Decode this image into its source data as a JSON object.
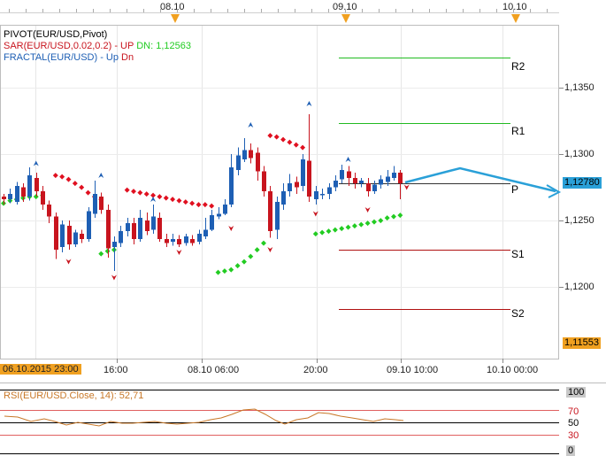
{
  "top_dates": [
    "08.10",
    "09.10",
    "10.10"
  ],
  "legend": {
    "pivot": "PIVOT(EUR/USD,Pivot)",
    "sar_name": "SAR(EUR/USD,0.02,0.2) -",
    "sar_up": "UP",
    "sar_dn": "DN: 1,12563",
    "fractal_name": "FRACTAL(EUR/USD) -",
    "fractal_up": "Up",
    "fractal_dn": "Dn"
  },
  "pivot_levels": {
    "r2": "R2",
    "r1": "R1",
    "p": "P",
    "s1": "S1",
    "s2": "S2"
  },
  "y_axis": {
    "ticks": [
      "1,1350",
      "1,1300",
      "1,1250",
      "1,1200"
    ],
    "current_price": "1,12780",
    "low_price": "1,11553"
  },
  "x_axis": {
    "start_label": "06.10.2015 23:00",
    "ticks": [
      "16:00",
      "08.10 06:00",
      "20:00",
      "09.10 10:00",
      "10.10 00:00"
    ]
  },
  "rsi": {
    "label": "RSI(EUR/USD.Close, 14): 52,71",
    "levels": [
      "100",
      "70",
      "50",
      "30",
      "0"
    ]
  },
  "colors": {
    "bull": "#1e5fb4",
    "bear": "#c8141e",
    "sar": "#e01020",
    "sar_up": "#22cc22",
    "pivot_resistance": "#22bb22",
    "pivot_support": "#b01010",
    "projection": "#2aa0d8",
    "current_box": "#2aa0d8",
    "low_box": "#f0a020"
  },
  "chart_data": {
    "type": "candlestick",
    "instrument": "EUR/USD",
    "timeframe": "H1",
    "ylim": [
      1.1155,
      1.1415
    ],
    "pivots": {
      "R2": 1.1373,
      "R1": 1.1323,
      "P": 1.1278,
      "S1": 1.1228,
      "S2": 1.1183
    },
    "last_price": 1.1278,
    "rsi_last": 52.71
  }
}
